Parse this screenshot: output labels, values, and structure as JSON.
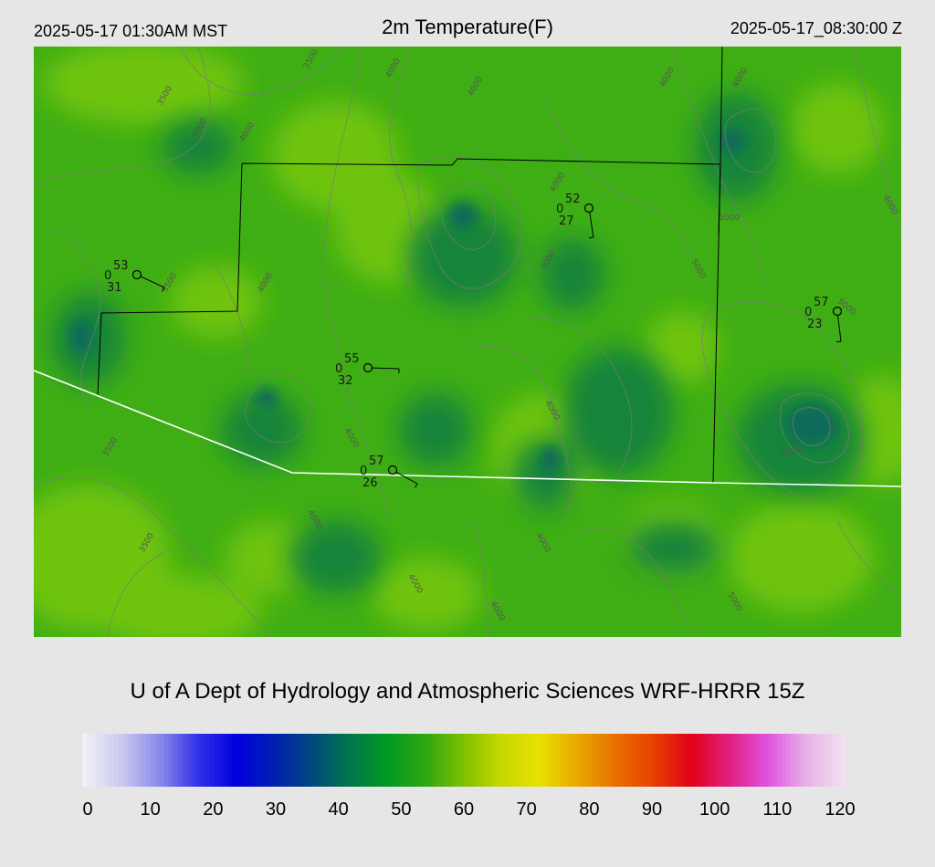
{
  "header": {
    "local_time": "2025-05-17 01:30AM MST",
    "title": "2m Temperature(F)",
    "utc_time": "2025-05-17_08:30:00 Z"
  },
  "credit": "U of A Dept of Hydrology and Atmospheric Sciences WRF-HRRR 15Z",
  "colorbar": {
    "ticks": [
      "0",
      "10",
      "20",
      "30",
      "40",
      "50",
      "60",
      "70",
      "80",
      "90",
      "100",
      "110",
      "120"
    ],
    "colors": [
      "#f0f0f8",
      "#c8c8f0",
      "#8888ea",
      "#3030e8",
      "#0000e0",
      "#0020b0",
      "#00487c",
      "#00784c",
      "#009a20",
      "#30a810",
      "#80c000",
      "#c8d800",
      "#e8e000",
      "#e8a800",
      "#e87000",
      "#e84000",
      "#e00018",
      "#e02080",
      "#e050e0",
      "#e8b0e8",
      "#f0e0f0"
    ]
  },
  "stations": [
    {
      "temp": "53",
      "dew": "31",
      "cloud": "0"
    },
    {
      "temp": "52",
      "dew": "27",
      "cloud": "0"
    },
    {
      "temp": "55",
      "dew": "32",
      "cloud": "0"
    },
    {
      "temp": "57",
      "dew": "23",
      "cloud": "0"
    },
    {
      "temp": "57",
      "dew": "26",
      "cloud": "0"
    }
  ],
  "contour_labels": [
    "3500",
    "4000",
    "4000",
    "3500",
    "4000",
    "4000",
    "5000",
    "4000",
    "4000",
    "4000",
    "5000",
    "3500",
    "4000",
    "4000",
    "5000",
    "4000",
    "4000",
    "4000",
    "4000",
    "3500",
    "3500",
    "4000",
    "4000",
    "4000",
    "4000",
    "5000"
  ],
  "map_colors": {
    "base": "#3fae14",
    "light": "#70c40a",
    "dark": "#13843a",
    "deep": "#0b6a5a",
    "border": "#000000",
    "state_line": "#ffffff",
    "contour": "#7a7a7a"
  }
}
